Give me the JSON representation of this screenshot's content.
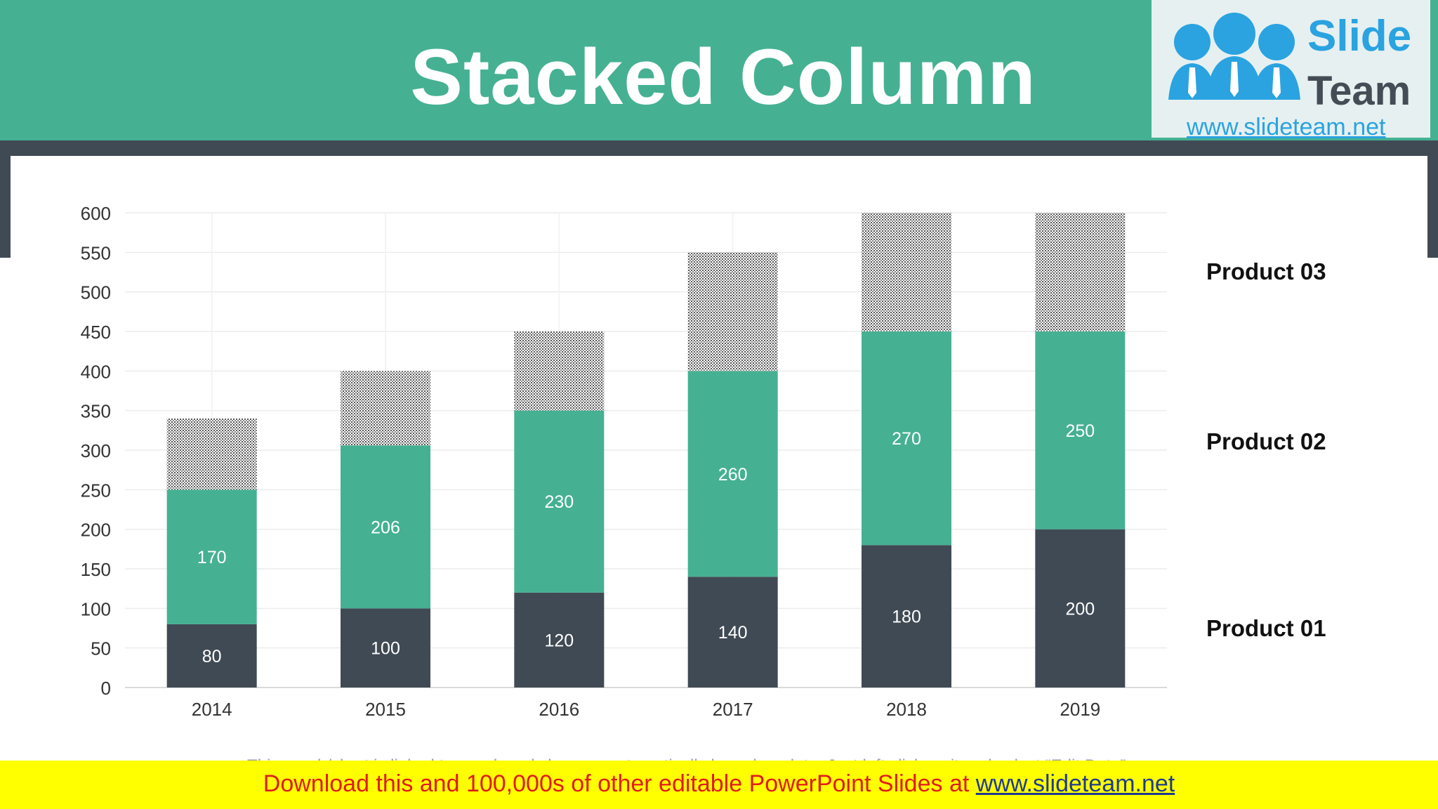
{
  "slide": {
    "title": "Stacked Column",
    "note": "This graph/chart is linked to excel, and changes automatically based on data. Just left click on it and select “Edit Data”."
  },
  "logo": {
    "word1": "Slide",
    "word2": "Team",
    "url": "www.slideteam.net"
  },
  "banner": {
    "text": "Download this and 100,000s of other editable PowerPoint Slides at ",
    "link": "www.slideteam.net"
  },
  "legend": {
    "product3": "Product 03",
    "product2": "Product 02",
    "product1": "Product 01"
  },
  "colors": {
    "header": "#45b192",
    "dark": "#404a54",
    "product1": "#404a54",
    "product2": "#45b192",
    "product3_pattern": "dotted-grey",
    "banner": "#ffff00",
    "banner_text": "#e01b1b"
  },
  "chart_data": {
    "type": "bar",
    "stacked": true,
    "categories": [
      "2014",
      "2015",
      "2016",
      "2017",
      "2018",
      "2019"
    ],
    "series": [
      {
        "name": "Product 01",
        "values": [
          80,
          100,
          120,
          140,
          180,
          200
        ],
        "labels_shown": true
      },
      {
        "name": "Product 02",
        "values": [
          170,
          206,
          230,
          260,
          270,
          250
        ],
        "labels_shown": true
      },
      {
        "name": "Product 03",
        "values": [
          90,
          94,
          100,
          150,
          150,
          150
        ],
        "labels_shown": false
      }
    ],
    "y_ticks": [
      "0",
      "50",
      "100",
      "150",
      "200",
      "250",
      "300",
      "350",
      "400",
      "450",
      "500",
      "550",
      "600"
    ],
    "ylim": [
      0,
      600
    ],
    "grid": true,
    "legend_position": "right"
  }
}
